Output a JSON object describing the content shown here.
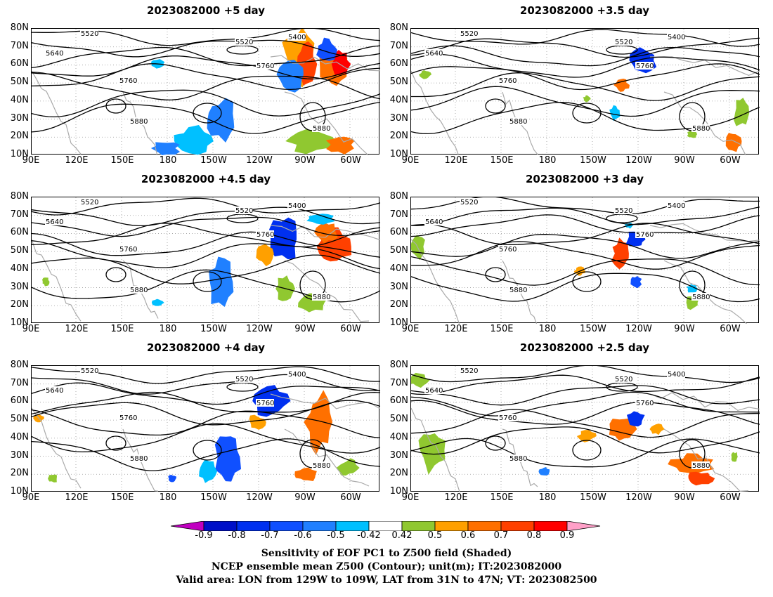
{
  "panels": [
    {
      "title": "2023082000 +5 day"
    },
    {
      "title": "2023082000 +3.5 day"
    },
    {
      "title": "2023082000 +4.5 day"
    },
    {
      "title": "2023082000 +3 day"
    },
    {
      "title": "2023082000 +4 day"
    },
    {
      "title": "2023082000 +2.5 day"
    }
  ],
  "lat_labels": [
    "80N",
    "70N",
    "60N",
    "50N",
    "40N",
    "30N",
    "20N",
    "10N"
  ],
  "lon_labels": [
    "90E",
    "120E",
    "150E",
    "180",
    "150W",
    "120W",
    "90W",
    "60W"
  ],
  "contour_labels": [
    "5400",
    "5520",
    "5640",
    "5760",
    "5880"
  ],
  "colorbar": {
    "ticks": [
      "-0.9",
      "-0.8",
      "-0.7",
      "-0.6",
      "-0.5",
      "-0.42",
      "0.42",
      "0.5",
      "0.6",
      "0.7",
      "0.8",
      "0.9"
    ],
    "colors": [
      "#c000c0",
      "#0010c8",
      "#0030f0",
      "#1050ff",
      "#2080ff",
      "#00c0ff",
      "#ffffff",
      "#90c830",
      "#ffa000",
      "#ff7000",
      "#ff4000",
      "#ff0000",
      "#ffa0c8"
    ]
  },
  "caption": {
    "line1": "Sensitivity of EOF PC1 to Z500 field (Shaded)",
    "line2": "NCEP ensemble mean Z500 (Contour); unit(m); IT:2023082000",
    "line3": "Valid area: LON from 129W to 109W, LAT from 31N to 47N; VT: 2023082500"
  }
}
